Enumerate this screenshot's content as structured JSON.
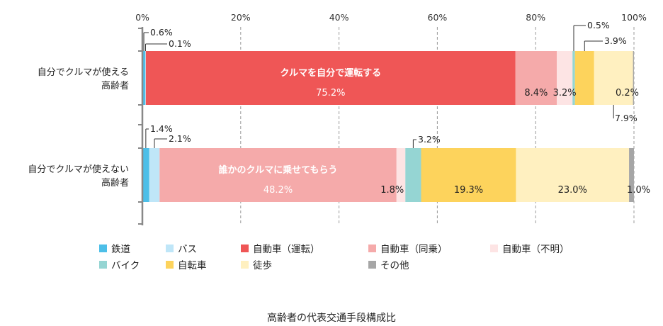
{
  "chart_data": {
    "type": "bar",
    "orientation": "horizontal",
    "stacked": true,
    "title": "高齢者の代表交通手段構成比",
    "categories": [
      "自分でクルマが使える高齢者",
      "自分でクルマが使えない高齢者"
    ],
    "category_lines": [
      [
        "自分でクルマが使える",
        "高齢者"
      ],
      [
        "自分でクルマが使えない",
        "高齢者"
      ]
    ],
    "xlim": [
      0,
      100
    ],
    "xticks": [
      "0%",
      "20%",
      "40%",
      "60%",
      "80%",
      "100%"
    ],
    "grid": true,
    "legend_position": "bottom",
    "series": [
      {
        "name": "鉄道",
        "color": "#4dbfe8",
        "values": [
          0.6,
          1.4
        ],
        "labels": [
          "0.6%",
          "1.4%"
        ]
      },
      {
        "name": "バス",
        "color": "#bfe6f8",
        "values": [
          0.1,
          2.1
        ],
        "labels": [
          "0.1%",
          "2.1%"
        ]
      },
      {
        "name": "自動車（運転）",
        "color": "#ef5656",
        "values": [
          75.2,
          0
        ],
        "labels": [
          "75.2%",
          ""
        ]
      },
      {
        "name": "自動車（同乗）",
        "color": "#f5aaaa",
        "values": [
          8.4,
          48.2
        ],
        "labels": [
          "8.4%",
          "48.2%"
        ]
      },
      {
        "name": "自動車（不明）",
        "color": "#fde4e4",
        "values": [
          3.2,
          1.8
        ],
        "labels": [
          "3.2%",
          "1.8%"
        ]
      },
      {
        "name": "バイク",
        "color": "#95d5d3",
        "values": [
          0.5,
          3.2
        ],
        "labels": [
          "0.5%",
          "3.2%"
        ]
      },
      {
        "name": "自転車",
        "color": "#fdd35c",
        "values": [
          3.9,
          19.3
        ],
        "labels": [
          "3.9%",
          "19.3%"
        ]
      },
      {
        "name": "徒歩",
        "color": "#fff0c0",
        "values": [
          7.9,
          23.0
        ],
        "labels": [
          "7.9%",
          "23.0%"
        ]
      },
      {
        "name": "その他",
        "color": "#a6a6a6",
        "values": [
          0.2,
          1.0
        ],
        "labels": [
          "0.2%",
          "1.0%"
        ]
      }
    ],
    "annotations": [
      {
        "bar": 0,
        "series": 2,
        "title": "クルマを自分で運転する",
        "value": "75.2%"
      },
      {
        "bar": 1,
        "series": 3,
        "title": "誰かのクルマに乗せてもらう",
        "value": "48.2%"
      }
    ]
  }
}
